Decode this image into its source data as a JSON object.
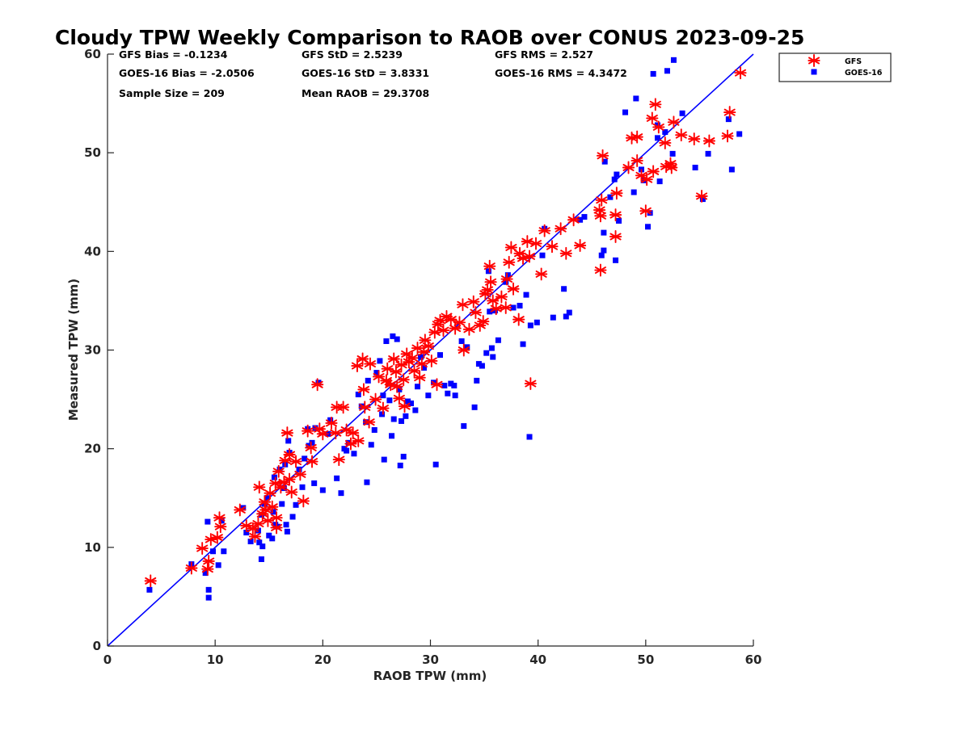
{
  "chart_data": {
    "type": "scatter",
    "title": "Cloudy TPW Weekly Comparison to RAOB over CONUS 2023-09-25",
    "xlabel": "RAOB TPW (mm)",
    "ylabel": "Measured TPW (mm)",
    "xlim": [
      0,
      60
    ],
    "ylim": [
      0,
      60
    ],
    "xticks": [
      0,
      10,
      20,
      30,
      40,
      50,
      60
    ],
    "yticks": [
      0,
      10,
      20,
      30,
      40,
      50,
      60
    ],
    "grid": false,
    "legend_position": "outside top-right",
    "reference_line": {
      "style": "1:1 line",
      "color": "#0000ff"
    },
    "stats": {
      "gfs_bias": "GFS Bias = -0.1234",
      "gfs_std": "GFS StD = 2.5239",
      "gfs_rms": "GFS RMS = 2.527",
      "goes_bias": "GOES-16 Bias = -2.0506",
      "goes_std": "GOES-16 StD = 3.8331",
      "goes_rms": "GOES-16 RMS = 4.3472",
      "sample_size": "Sample Size = 209",
      "mean_raob": "Mean RAOB = 29.3708"
    },
    "series": [
      {
        "name": "GFS",
        "marker": "asterisk",
        "color": "#ff0000",
        "points": [
          [
            4.0,
            6.6
          ],
          [
            7.8,
            7.9
          ],
          [
            9.3,
            7.8
          ],
          [
            9.4,
            8.6
          ],
          [
            8.8,
            9.9
          ],
          [
            9.6,
            10.8
          ],
          [
            10.2,
            11.0
          ],
          [
            10.5,
            12.1
          ],
          [
            10.4,
            13.0
          ],
          [
            12.3,
            13.8
          ],
          [
            12.9,
            12.2
          ],
          [
            13.5,
            11.9
          ],
          [
            13.7,
            11.1
          ],
          [
            14.0,
            12.4
          ],
          [
            14.1,
            16.1
          ],
          [
            14.4,
            13.4
          ],
          [
            14.7,
            13.8
          ],
          [
            14.9,
            12.7
          ],
          [
            15.3,
            14.1
          ],
          [
            15.7,
            13.0
          ],
          [
            14.6,
            14.6
          ],
          [
            15.1,
            15.5
          ],
          [
            15.6,
            16.5
          ],
          [
            15.9,
            17.7
          ],
          [
            15.7,
            12.0
          ],
          [
            16.1,
            16.1
          ],
          [
            16.4,
            16.6
          ],
          [
            16.7,
            21.6
          ],
          [
            16.9,
            19.4
          ],
          [
            16.9,
            16.9
          ],
          [
            17.1,
            15.6
          ],
          [
            17.5,
            18.7
          ],
          [
            17.9,
            17.4
          ],
          [
            16.5,
            18.8
          ],
          [
            18.2,
            14.7
          ],
          [
            18.6,
            21.8
          ],
          [
            18.9,
            20.1
          ],
          [
            19.0,
            18.7
          ],
          [
            19.5,
            26.5
          ],
          [
            19.7,
            22.0
          ],
          [
            20.0,
            21.5
          ],
          [
            20.8,
            22.6
          ],
          [
            21.2,
            21.6
          ],
          [
            21.5,
            18.9
          ],
          [
            21.3,
            24.2
          ],
          [
            21.9,
            24.2
          ],
          [
            22.2,
            21.9
          ],
          [
            22.6,
            20.5
          ],
          [
            22.8,
            21.6
          ],
          [
            23.3,
            20.8
          ],
          [
            23.2,
            28.4
          ],
          [
            23.7,
            29.1
          ],
          [
            23.9,
            24.2
          ],
          [
            23.8,
            26.0
          ],
          [
            24.3,
            22.7
          ],
          [
            24.4,
            28.6
          ],
          [
            24.9,
            25.0
          ],
          [
            25.2,
            27.3
          ],
          [
            25.6,
            24.1
          ],
          [
            25.9,
            26.9
          ],
          [
            26.0,
            28.1
          ],
          [
            26.3,
            26.5
          ],
          [
            26.6,
            29.1
          ],
          [
            26.8,
            27.8
          ],
          [
            26.9,
            26.3
          ],
          [
            27.1,
            25.1
          ],
          [
            27.3,
            28.5
          ],
          [
            27.5,
            27.0
          ],
          [
            27.6,
            24.3
          ],
          [
            27.8,
            29.6
          ],
          [
            28.0,
            28.8
          ],
          [
            28.3,
            29.2
          ],
          [
            28.5,
            27.9
          ],
          [
            28.8,
            30.2
          ],
          [
            29.0,
            27.2
          ],
          [
            29.2,
            28.6
          ],
          [
            29.4,
            29.8
          ],
          [
            29.5,
            31.0
          ],
          [
            29.8,
            30.4
          ],
          [
            30.1,
            28.9
          ],
          [
            30.4,
            31.8
          ],
          [
            30.6,
            26.5
          ],
          [
            30.7,
            32.6
          ],
          [
            30.9,
            33.0
          ],
          [
            31.2,
            32.0
          ],
          [
            31.5,
            33.4
          ],
          [
            31.9,
            33.1
          ],
          [
            32.3,
            32.2
          ],
          [
            32.7,
            32.8
          ],
          [
            33.0,
            34.6
          ],
          [
            33.1,
            30.0
          ],
          [
            33.6,
            32.1
          ],
          [
            34.0,
            34.9
          ],
          [
            34.2,
            33.8
          ],
          [
            34.6,
            32.5
          ],
          [
            34.9,
            32.9
          ],
          [
            35.1,
            35.7
          ],
          [
            35.3,
            36.1
          ],
          [
            35.5,
            38.5
          ],
          [
            35.6,
            36.9
          ],
          [
            35.8,
            35.0
          ],
          [
            36.1,
            34.2
          ],
          [
            36.6,
            35.4
          ],
          [
            37.0,
            34.3
          ],
          [
            37.1,
            37.2
          ],
          [
            37.3,
            38.9
          ],
          [
            37.5,
            40.4
          ],
          [
            37.7,
            36.2
          ],
          [
            38.2,
            33.1
          ],
          [
            38.3,
            39.8
          ],
          [
            38.6,
            39.3
          ],
          [
            39.0,
            41.0
          ],
          [
            39.2,
            39.5
          ],
          [
            39.3,
            26.6
          ],
          [
            39.8,
            40.8
          ],
          [
            40.3,
            37.7
          ],
          [
            40.6,
            42.1
          ],
          [
            41.3,
            40.5
          ],
          [
            42.1,
            42.3
          ],
          [
            42.6,
            39.8
          ],
          [
            43.3,
            43.2
          ],
          [
            43.9,
            40.6
          ],
          [
            45.7,
            44.2
          ],
          [
            45.8,
            43.6
          ],
          [
            45.9,
            45.2
          ],
          [
            45.8,
            38.1
          ],
          [
            46.0,
            49.7
          ],
          [
            47.2,
            43.7
          ],
          [
            47.2,
            41.5
          ],
          [
            47.3,
            45.9
          ],
          [
            48.4,
            48.5
          ],
          [
            48.7,
            51.5
          ],
          [
            49.2,
            49.2
          ],
          [
            49.2,
            51.6
          ],
          [
            49.6,
            47.7
          ],
          [
            50.0,
            44.1
          ],
          [
            50.1,
            47.3
          ],
          [
            50.6,
            53.5
          ],
          [
            50.7,
            48.1
          ],
          [
            50.9,
            54.9
          ],
          [
            51.2,
            52.6
          ],
          [
            51.8,
            51.0
          ],
          [
            51.9,
            48.6
          ],
          [
            52.3,
            48.9
          ],
          [
            52.4,
            48.5
          ],
          [
            52.6,
            53.1
          ],
          [
            53.3,
            51.8
          ],
          [
            54.5,
            51.4
          ],
          [
            55.2,
            45.6
          ],
          [
            55.9,
            51.2
          ],
          [
            57.6,
            51.7
          ],
          [
            57.8,
            54.1
          ],
          [
            58.8,
            58.1
          ]
        ]
      },
      {
        "name": "GOES-16",
        "marker": "square",
        "color": "#0000ff",
        "points": [
          [
            3.9,
            5.7
          ],
          [
            7.8,
            8.3
          ],
          [
            9.1,
            7.4
          ],
          [
            9.4,
            5.7
          ],
          [
            9.4,
            4.9
          ],
          [
            9.3,
            12.6
          ],
          [
            9.8,
            9.6
          ],
          [
            10.3,
            8.2
          ],
          [
            10.6,
            12.7
          ],
          [
            10.8,
            9.6
          ],
          [
            12.6,
            14.0
          ],
          [
            12.9,
            11.5
          ],
          [
            13.3,
            10.6
          ],
          [
            14.0,
            11.7
          ],
          [
            14.1,
            10.5
          ],
          [
            14.3,
            8.8
          ],
          [
            14.4,
            10.1
          ],
          [
            14.3,
            13.3
          ],
          [
            14.6,
            14.4
          ],
          [
            14.8,
            15.0
          ],
          [
            15.0,
            11.2
          ],
          [
            15.3,
            10.9
          ],
          [
            15.4,
            13.6
          ],
          [
            15.5,
            17.1
          ],
          [
            15.6,
            12.3
          ],
          [
            15.8,
            12.1
          ],
          [
            16.0,
            17.9
          ],
          [
            16.2,
            14.4
          ],
          [
            16.4,
            16.0
          ],
          [
            16.5,
            18.4
          ],
          [
            16.6,
            12.3
          ],
          [
            16.7,
            11.6
          ],
          [
            16.8,
            20.8
          ],
          [
            16.9,
            19.6
          ],
          [
            17.2,
            13.1
          ],
          [
            17.5,
            14.3
          ],
          [
            17.8,
            17.9
          ],
          [
            18.1,
            16.1
          ],
          [
            18.3,
            19.0
          ],
          [
            18.6,
            22.0
          ],
          [
            18.7,
            20.3
          ],
          [
            19.0,
            20.6
          ],
          [
            19.2,
            16.5
          ],
          [
            19.3,
            22.1
          ],
          [
            19.6,
            26.7
          ],
          [
            20.0,
            15.8
          ],
          [
            20.5,
            21.5
          ],
          [
            20.7,
            22.9
          ],
          [
            21.3,
            17.0
          ],
          [
            21.7,
            15.5
          ],
          [
            22.0,
            20.0
          ],
          [
            22.2,
            19.8
          ],
          [
            22.4,
            20.6
          ],
          [
            22.9,
            19.5
          ],
          [
            23.3,
            25.5
          ],
          [
            23.6,
            24.3
          ],
          [
            24.0,
            22.7
          ],
          [
            24.1,
            16.6
          ],
          [
            24.2,
            26.9
          ],
          [
            24.5,
            20.4
          ],
          [
            24.8,
            21.9
          ],
          [
            25.0,
            27.7
          ],
          [
            25.3,
            28.9
          ],
          [
            25.5,
            23.5
          ],
          [
            25.6,
            25.4
          ],
          [
            25.7,
            18.9
          ],
          [
            25.9,
            30.9
          ],
          [
            26.1,
            26.6
          ],
          [
            26.2,
            24.9
          ],
          [
            26.4,
            21.3
          ],
          [
            26.5,
            31.4
          ],
          [
            26.6,
            23.0
          ],
          [
            26.9,
            31.1
          ],
          [
            27.1,
            26.0
          ],
          [
            27.2,
            18.3
          ],
          [
            27.3,
            22.8
          ],
          [
            27.5,
            19.2
          ],
          [
            27.7,
            23.3
          ],
          [
            27.9,
            24.8
          ],
          [
            28.2,
            24.6
          ],
          [
            28.6,
            23.9
          ],
          [
            28.8,
            26.3
          ],
          [
            29.1,
            29.3
          ],
          [
            29.4,
            28.2
          ],
          [
            29.8,
            25.4
          ],
          [
            30.3,
            26.7
          ],
          [
            30.5,
            18.4
          ],
          [
            30.9,
            29.5
          ],
          [
            31.3,
            26.4
          ],
          [
            31.6,
            25.6
          ],
          [
            31.9,
            26.6
          ],
          [
            32.2,
            26.4
          ],
          [
            32.3,
            25.4
          ],
          [
            32.9,
            30.9
          ],
          [
            33.1,
            22.3
          ],
          [
            33.4,
            30.3
          ],
          [
            34.1,
            24.2
          ],
          [
            34.3,
            26.9
          ],
          [
            34.5,
            28.6
          ],
          [
            34.8,
            28.4
          ],
          [
            35.2,
            29.7
          ],
          [
            35.4,
            38.0
          ],
          [
            35.5,
            33.9
          ],
          [
            35.7,
            30.2
          ],
          [
            35.8,
            29.3
          ],
          [
            36.0,
            34.0
          ],
          [
            36.3,
            31.0
          ],
          [
            37.0,
            36.9
          ],
          [
            37.2,
            37.6
          ],
          [
            37.7,
            34.3
          ],
          [
            38.3,
            34.5
          ],
          [
            38.6,
            30.6
          ],
          [
            38.9,
            35.6
          ],
          [
            39.2,
            21.2
          ],
          [
            39.3,
            32.5
          ],
          [
            39.9,
            32.8
          ],
          [
            40.4,
            39.6
          ],
          [
            40.6,
            42.3
          ],
          [
            41.4,
            33.3
          ],
          [
            42.4,
            36.2
          ],
          [
            42.6,
            33.4
          ],
          [
            42.9,
            33.8
          ],
          [
            43.9,
            43.2
          ],
          [
            44.3,
            43.5
          ],
          [
            45.9,
            39.6
          ],
          [
            46.1,
            40.1
          ],
          [
            46.1,
            41.9
          ],
          [
            46.2,
            49.1
          ],
          [
            46.7,
            45.5
          ],
          [
            47.1,
            47.3
          ],
          [
            47.2,
            39.1
          ],
          [
            47.3,
            47.8
          ],
          [
            47.5,
            43.1
          ],
          [
            48.1,
            54.1
          ],
          [
            48.9,
            46.0
          ],
          [
            49.1,
            55.5
          ],
          [
            49.6,
            48.3
          ],
          [
            49.8,
            47.2
          ],
          [
            50.2,
            42.5
          ],
          [
            50.4,
            43.9
          ],
          [
            50.7,
            58.0
          ],
          [
            51.1,
            52.8
          ],
          [
            51.1,
            51.5
          ],
          [
            51.3,
            47.1
          ],
          [
            51.8,
            52.1
          ],
          [
            52.0,
            58.3
          ],
          [
            52.5,
            49.9
          ],
          [
            52.6,
            59.4
          ],
          [
            53.4,
            54.0
          ],
          [
            54.6,
            48.5
          ],
          [
            55.3,
            45.3
          ],
          [
            55.8,
            49.9
          ],
          [
            57.7,
            53.4
          ],
          [
            58.0,
            48.3
          ],
          [
            58.7,
            51.9
          ]
        ]
      }
    ]
  }
}
